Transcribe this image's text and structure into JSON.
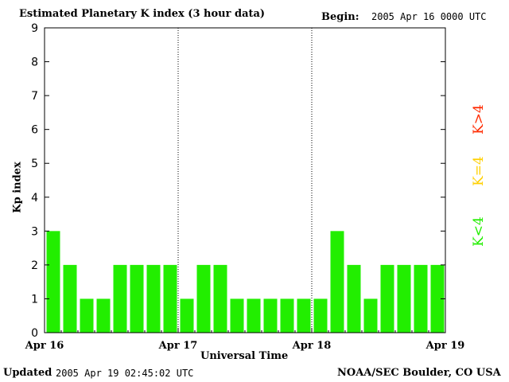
{
  "header": {
    "title": "Estimated Planetary K index (3 hour data)",
    "begin_label": "Begin:",
    "begin_value": "2005 Apr 16 0000 UTC"
  },
  "footer": {
    "updated_label": "Updated",
    "updated_value": "2005 Apr 19 02:45:02 UTC",
    "source": "NOAA/SEC Boulder, CO USA"
  },
  "legend": [
    {
      "label": "K>4",
      "color": "#ff2a00"
    },
    {
      "label": "K=4",
      "color": "#ffd000"
    },
    {
      "label": "K<4",
      "color": "#22ee00"
    }
  ],
  "chart_data": {
    "type": "bar",
    "title": "Estimated Planetary K index (3 hour data)",
    "xlabel": "Universal Time",
    "ylabel": "Kp index",
    "ylim": [
      0,
      9
    ],
    "yticks": [
      "0",
      "1",
      "2",
      "3",
      "4",
      "5",
      "6",
      "7",
      "8",
      "9"
    ],
    "xticks": [
      "Apr 16",
      "Apr 17",
      "Apr 18",
      "Apr 19"
    ],
    "bar_color": "#22ee00",
    "series": [
      {
        "values": [
          3,
          2,
          1,
          1,
          2,
          2,
          2,
          2,
          1,
          2,
          2,
          1,
          1,
          1,
          1,
          1,
          1,
          3,
          2,
          1,
          2,
          2,
          2,
          2
        ]
      }
    ]
  }
}
